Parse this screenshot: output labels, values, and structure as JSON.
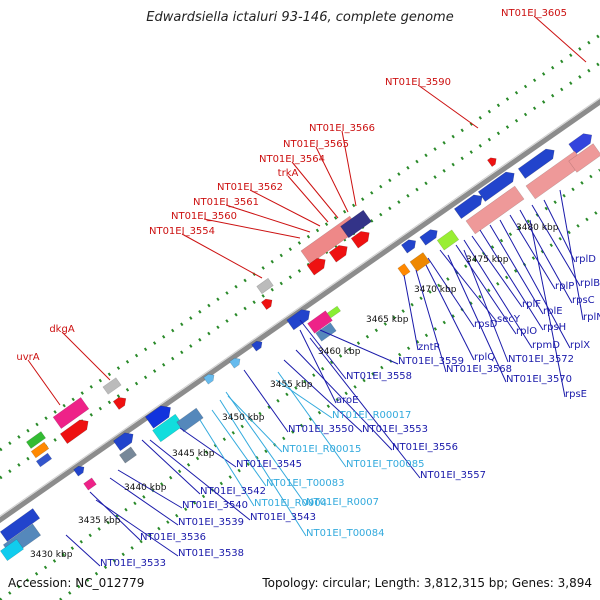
{
  "title": "Edwardsiella ictaluri 93-146, complete genome",
  "accession": "Accession: NC_012779",
  "summary": "Topology: circular; Length: 3,812,315 bp; Genes: 3,894",
  "colors": {
    "backbone": "#8c8c8c",
    "tick_dots": "#2a8a2a",
    "upper_label": "#cc1111",
    "lower_label": "#1a1aaa",
    "rna_label": "#33aadd",
    "kbp_label": "#111111"
  },
  "kbp_ticks": [
    "3430 kbp",
    "3435 kbp",
    "3440 kbp",
    "3445 kbp",
    "3450 kbp",
    "3455 kbp",
    "3460 kbp",
    "3465 kbp",
    "3470 kbp",
    "3475 kbp",
    "3480 kbp"
  ],
  "upper_labels": [
    "uvrA",
    "dkgA",
    "NT01EI_3554",
    "NT01EI_3560",
    "NT01EI_3561",
    "NT01EI_3562",
    "trkA",
    "NT01EI_3564",
    "NT01EI_3565",
    "NT01EI_3566",
    "NT01EI_3590",
    "NT01EI_3605"
  ],
  "lower_labels": [
    "NT01EI_3533",
    "NT01EI_3538",
    "NT01EI_3536",
    "NT01EI_3539",
    "NT01EI_3540",
    "NT01EI_3543",
    "NT01EI_3542",
    "NT01EI_3545",
    "NT01EI_3550",
    "NT01EI_3553",
    "NT01EI_3556",
    "NT01EI_3557",
    "aroE",
    "NT01EI_3558",
    "NT01EI_3559",
    "zntR",
    "NT01EI_3568",
    "rplQ",
    "rpsD",
    "secY",
    "rplO",
    "rpmD",
    "rplF",
    "rpsH",
    "rplE",
    "rplX",
    "rplP",
    "rpsC",
    "rplB",
    "rplD",
    "NT01EI_3570",
    "NT01EI_3572",
    "rpsE",
    "rplN"
  ],
  "rna_labels": [
    "NT01EI_T00084",
    "NT01EI_R0007",
    "NT01EI_R0004",
    "NT01EI_T00083",
    "NT01EI_R00015",
    "NT01EI_T00085",
    "NT01EI_R00017"
  ]
}
